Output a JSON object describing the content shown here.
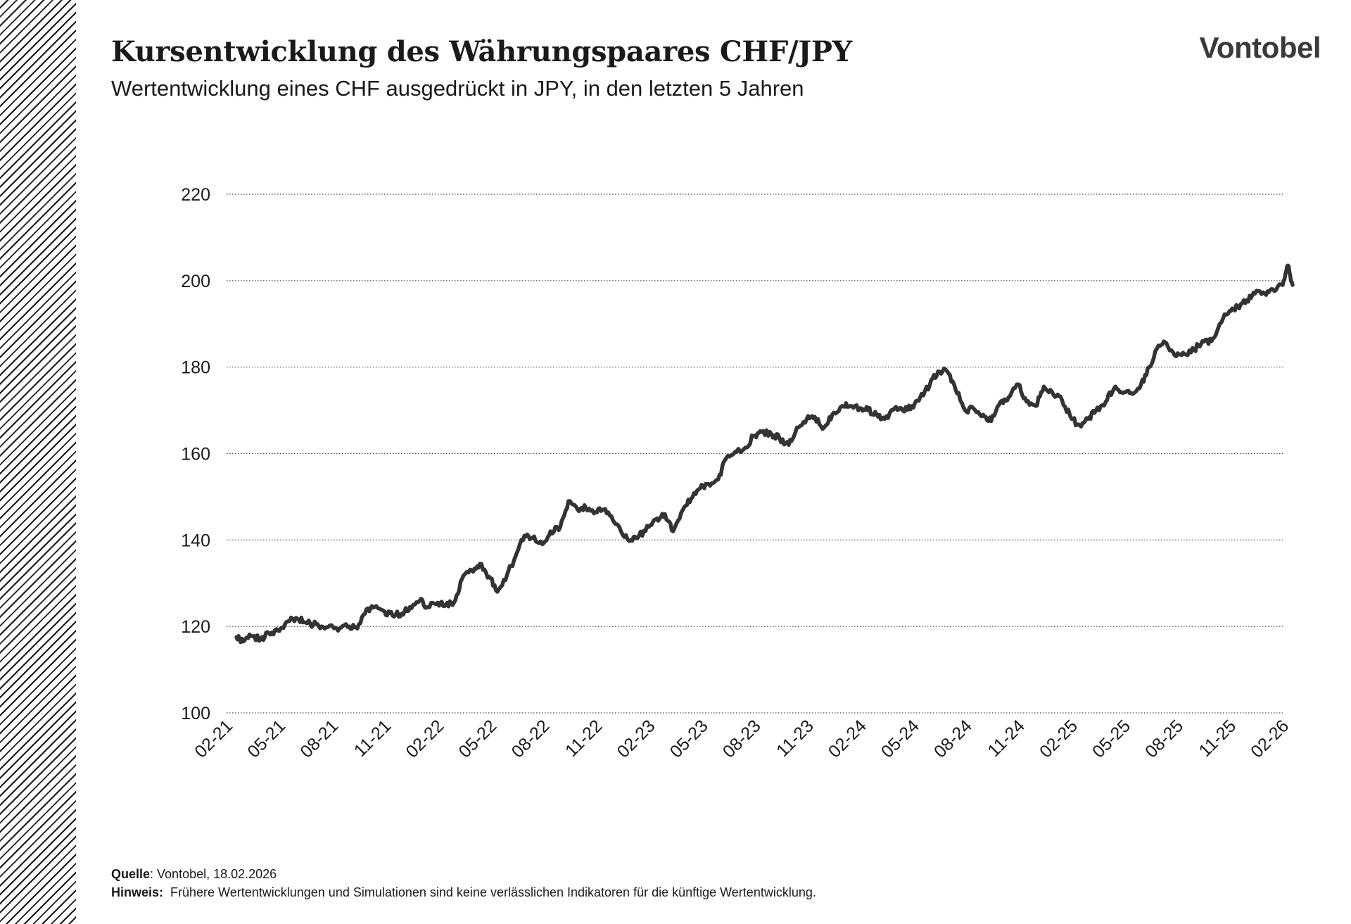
{
  "header": {
    "title": "Kursentwicklung des Währungspaares CHF/JPY",
    "subtitle": "Wertentwicklung eines CHF ausgedrückt in JPY, in den letzten 5 Jahren",
    "logo": "Vontobel"
  },
  "footer": {
    "source_label": "Quelle",
    "source_text": ": Vontobel, 18.02.2026",
    "note_label": "Hinweis:",
    "note_text": "Frühere Wertentwicklungen und Simulationen sind keine verlässlichen Indikatoren für die künftige Wertentwicklung."
  },
  "colors": {
    "line": "#333333",
    "grid": "#444444",
    "text": "#1a1a1a"
  },
  "chart_data": {
    "type": "line",
    "title": "Kursentwicklung des Währungspaares CHF/JPY",
    "subtitle": "Wertentwicklung eines CHF ausgedrückt in JPY, in den letzten 5 Jahren",
    "xlabel": "",
    "ylabel": "",
    "ylim": [
      100,
      220
    ],
    "yticks": [
      100,
      120,
      140,
      160,
      180,
      200,
      220
    ],
    "xlim": [
      "2021-02",
      "2026-02"
    ],
    "xticks": [
      "02-21",
      "05-21",
      "08-21",
      "11-21",
      "02-22",
      "05-22",
      "08-22",
      "11-22",
      "02-23",
      "05-23",
      "08-23",
      "11-23",
      "02-24",
      "05-24",
      "08-24",
      "11-24",
      "02-25",
      "05-25",
      "08-25",
      "11-25",
      "02-26"
    ],
    "grid": "horizontal dotted",
    "series": [
      {
        "x": [
          "2021-02-18",
          "2021-03-01",
          "2021-03-15",
          "2021-04-01",
          "2021-04-15",
          "2021-05-01",
          "2021-05-15",
          "2021-06-01",
          "2021-06-15",
          "2021-07-01",
          "2021-07-15",
          "2021-08-01",
          "2021-08-15",
          "2021-09-01",
          "2021-09-15",
          "2021-10-01",
          "2021-10-15",
          "2021-11-01",
          "2021-11-15",
          "2021-12-01",
          "2021-12-15",
          "2022-01-01",
          "2022-01-15",
          "2022-02-01",
          "2022-02-15",
          "2022-03-01",
          "2022-03-15",
          "2022-04-01",
          "2022-04-15",
          "2022-05-01",
          "2022-05-15",
          "2022-06-01",
          "2022-06-15",
          "2022-07-01",
          "2022-07-15",
          "2022-08-01",
          "2022-08-15",
          "2022-09-01",
          "2022-09-15",
          "2022-10-01",
          "2022-10-15",
          "2022-11-01",
          "2022-11-15",
          "2022-12-01",
          "2022-12-15",
          "2023-01-01",
          "2023-01-15",
          "2023-02-01",
          "2023-02-15",
          "2023-03-01",
          "2023-03-15",
          "2023-04-01",
          "2023-04-15",
          "2023-05-01",
          "2023-05-15",
          "2023-06-01",
          "2023-06-15",
          "2023-07-01",
          "2023-07-15",
          "2023-08-01",
          "2023-08-15",
          "2023-09-01",
          "2023-09-15",
          "2023-10-01",
          "2023-10-15",
          "2023-11-01",
          "2023-11-15",
          "2023-12-01",
          "2023-12-15",
          "2024-01-01",
          "2024-01-15",
          "2024-02-01",
          "2024-02-15",
          "2024-03-01",
          "2024-03-15",
          "2024-04-01",
          "2024-04-15",
          "2024-05-01",
          "2024-05-15",
          "2024-06-01",
          "2024-06-15",
          "2024-07-01",
          "2024-07-15",
          "2024-08-01",
          "2024-08-15",
          "2024-09-01",
          "2024-09-15",
          "2024-10-01",
          "2024-10-15",
          "2024-11-01",
          "2024-11-15",
          "2024-12-01",
          "2024-12-15",
          "2025-01-01",
          "2025-01-15",
          "2025-02-01",
          "2025-02-15",
          "2025-03-01",
          "2025-03-15",
          "2025-04-01",
          "2025-04-15",
          "2025-05-01",
          "2025-05-15",
          "2025-06-01",
          "2025-06-15",
          "2025-07-01",
          "2025-07-15",
          "2025-08-01",
          "2025-08-15",
          "2025-09-01",
          "2025-09-15",
          "2025-10-01",
          "2025-10-15",
          "2025-11-01",
          "2025-11-15",
          "2025-12-01",
          "2025-12-15",
          "2026-01-01",
          "2026-01-15",
          "2026-02-01",
          "2026-02-10",
          "2026-02-18"
        ],
        "values": [
          117.5,
          116.5,
          117.8,
          117.0,
          118.5,
          119.0,
          121.0,
          122.0,
          121.0,
          120.5,
          120.0,
          120.3,
          119.5,
          120.0,
          119.5,
          124.0,
          124.5,
          123.5,
          122.5,
          123.0,
          124.5,
          126.0,
          124.5,
          125.5,
          125.0,
          125.5,
          131.0,
          133.0,
          134.5,
          131.5,
          128.0,
          132.0,
          136.0,
          141.0,
          140.5,
          139.0,
          142.0,
          143.0,
          149.0,
          147.0,
          147.5,
          146.5,
          147.0,
          144.5,
          142.0,
          140.0,
          141.0,
          143.0,
          145.0,
          146.0,
          142.0,
          147.0,
          149.5,
          152.0,
          153.0,
          154.0,
          159.0,
          160.5,
          161.0,
          164.0,
          165.0,
          164.5,
          163.5,
          162.0,
          166.0,
          168.0,
          168.5,
          166.0,
          169.0,
          171.0,
          171.0,
          170.5,
          170.0,
          169.0,
          168.0,
          170.5,
          170.0,
          171.0,
          173.0,
          176.0,
          179.0,
          179.0,
          175.0,
          170.0,
          170.5,
          169.0,
          167.5,
          172.0,
          173.0,
          176.0,
          172.0,
          171.0,
          175.5,
          173.5,
          172.5,
          168.0,
          166.5,
          168.0,
          170.0,
          172.0,
          175.0,
          174.0,
          174.0,
          176.0,
          180.0,
          185.0,
          185.5,
          182.5,
          183.0,
          184.0,
          186.0,
          186.0,
          190.0,
          193.0,
          194.0,
          195.5,
          197.0,
          197.0,
          198.0,
          199.0,
          203.5,
          199.0
        ]
      }
    ]
  }
}
